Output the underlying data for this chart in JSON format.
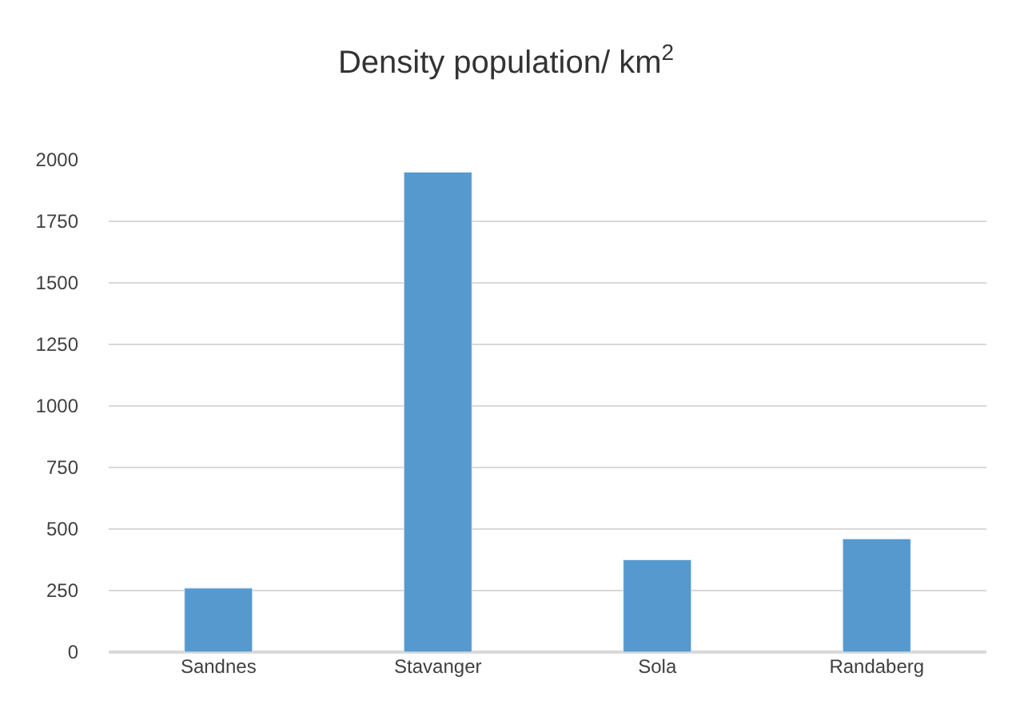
{
  "chart_data": {
    "type": "bar",
    "title": "Density population/ km$^{2}$",
    "categories": [
      "Sandnes",
      "Stavanger",
      "Sola",
      "Randaberg"
    ],
    "values": [
      260,
      1950,
      375,
      460
    ],
    "color": "#5599cf",
    "ylim": [
      0,
      2000
    ],
    "yticks": [
      0,
      250,
      500,
      750,
      1000,
      1250,
      1500,
      1750,
      2000
    ],
    "grid": "y"
  }
}
